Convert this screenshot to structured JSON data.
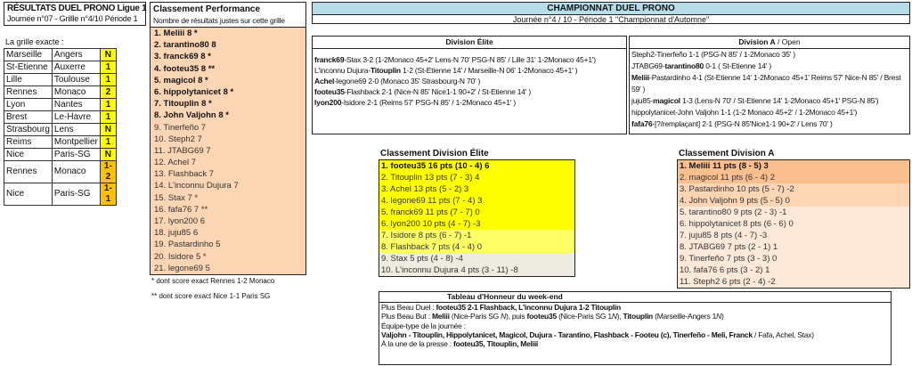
{
  "left": {
    "title": "RÉSULTATS DUEL PRONO Ligue 1",
    "subtitle": "Journée n°07 - Grillle n°4/10 Période 1",
    "grid_label": "La grille exacte :",
    "grid": [
      [
        "Marseille",
        "Angers",
        "N"
      ],
      [
        "St-Etienne",
        "Auxerre",
        "1"
      ],
      [
        "Lille",
        "Toulouse",
        "1"
      ],
      [
        "Rennes",
        "Monaco",
        "2"
      ],
      [
        "Lyon",
        "Nantes",
        "1"
      ],
      [
        "Brest",
        "Le-Havre",
        "1"
      ],
      [
        "Strasbourg",
        "Lens",
        "N"
      ],
      [
        "Reims",
        "Montpellier",
        "1"
      ],
      [
        "Nice",
        "Paris-SG",
        "N"
      ],
      [
        "Rennes",
        "Monaco",
        "1-2"
      ],
      [
        "Nice",
        "Paris-SG",
        "1-1"
      ]
    ]
  },
  "performance": {
    "title": "Classement Performance",
    "subtitle": "Nombre de résultats justes sur cette grille",
    "items": [
      "1. Meliii 8 *",
      "2. tarantino80 8",
      "3. franck69 8 *",
      "4. footeu35 8 **",
      "5. magicol 8 *",
      "6. hippolytanicet 8 *",
      "7. Titouplin 8 *",
      "8. John Valjohn 8 *",
      "9. Tinerfeño 7",
      "10. Steph2 7",
      "11. JTABG69 7",
      "12. Achel 7",
      "13. Flashback 7",
      "14. L'inconnu Dujura 7",
      "15. Stax 7 *",
      "16. fafa76 7 **",
      "17. lyon200 6",
      "18. juju85 6",
      "19. Pastardinho 5",
      "20. Isidore 5 *",
      "21. legone69 5"
    ],
    "footnote1": "* dont score exact Rennes 1-2 Monaco",
    "footnote2": "** dont score exact Nice 1-1 Paris SG"
  },
  "championship": {
    "title": "CHAMPIONNAT DUEL PRONO",
    "subtitle": "Journée n°4 / 10 - Période 1 \"Championnat d'Automne\""
  },
  "elite_duels": {
    "title": "Division Élite",
    "lines": [
      [
        {
          "t": "franck69",
          "b": 1
        },
        {
          "t": "-Stax 3-2  (1-2Monaco 45+2' Lens-N  70' PSG-N  85'  / Lille 31' 1-2Monaco 45+1')"
        }
      ],
      [
        {
          "t": "L'inconnu Dujura-"
        },
        {
          "t": "Titouplin",
          "b": 1
        },
        {
          "t": " 1-2  (St-Etienne 14'  / Marseille-N  06' 1-2Monaco  45+1' )"
        }
      ],
      [
        {
          "t": "Achel",
          "b": 1
        },
        {
          "t": "-legone69 2-0  (Monaco  35' Strasbourg-N  70' )"
        }
      ],
      [
        {
          "t": "footeu35",
          "b": 1
        },
        {
          "t": "-Flashback 2-1  (Nice-N  85' Nice1-1 90+2'  / St-Etienne 14' )"
        }
      ],
      [
        {
          "t": "lyon200",
          "b": 1
        },
        {
          "t": "-Isidore 2-1  (Reims 57' PSG-N  85'  / 1-2Monaco  45+1' )"
        }
      ]
    ]
  },
  "a_duels": {
    "title": "Division A",
    "title_suffix": " / Open",
    "lines": [
      [
        {
          "t": "Steph2-Tinerfeño 1-1  (PSG-N  85'  / 1-2Monaco  35' )"
        }
      ],
      [
        {
          "t": "JTABG69-"
        },
        {
          "t": "tarantino80",
          "b": 1
        },
        {
          "t": " 0-1 ( St-Etienne 14' )"
        }
      ],
      [
        {
          "t": "Meliii",
          "b": 1
        },
        {
          "t": "-Pastardinho 4-1  (St-Etienne 14' 1-2Monaco  45+1' Reims 57' Nice-N  85' / Brest 59' )"
        }
      ],
      [
        {
          "t": "juju85-"
        },
        {
          "t": "magicol",
          "b": 1
        },
        {
          "t": " 1-3  (Lens-N  70'  / St-Etienne 14' 1-2Monaco  45+1' PSG-N  85')"
        }
      ],
      [
        {
          "t": "hippolytanicet-John Valjohn 1-1 (1-2 Monaco 45+2' / 1-2Monaco 45+1')"
        }
      ],
      [
        {
          "t": "fafa76",
          "b": 1
        },
        {
          "t": "-[?/remplaçant] 2-1  (PSG-N  85'Nice1-1 90+2'  / Lens  70' )"
        }
      ]
    ]
  },
  "elite_ranking": {
    "title": "Classement Division Élite",
    "items": [
      "1. footeu35 16 pts (10 - 4) 6",
      "2. Titouplin 13 pts (7 - 3) 4",
      "3. Achel 13 pts (5 - 2) 3",
      "4. legone69 11 pts (7 - 4) 3",
      "5. franck69 11 pts (7 - 7) 0",
      "6. lyon200 10 pts (4 - 7) -3",
      "7. Isidore 8 pts (6 - 7) -1",
      "8. Flashback 7 pts (4 - 4) 0",
      "9. Stax 5 pts (4 - 8) -4",
      "10. L'inconnu Dujura 4 pts (3 - 11) -8"
    ],
    "colors": [
      "#ffff00",
      "#ffff00",
      "#ffff00",
      "#ffff00",
      "#ffff00",
      "#ffff00",
      "#ffff66",
      "#ffff66",
      "#eeece1",
      "#eeece1"
    ]
  },
  "a_ranking": {
    "title": "Classement Division A",
    "items": [
      "1. Meliii 11 pts (8 - 5) 3",
      "2. magicol 11 pts (6 - 4) 2",
      "3. Pastardinho 10 pts (5 - 7) -2",
      "4. John Valjohn 9 pts (5 - 5) 0",
      "5. tarantino80 9 pts (2 - 3) -1",
      "6. hippolytanicet 8 pts (6 - 6) 0",
      "7. juju85 8 pts (4 - 7) -3",
      "8. JTABG69 7 pts (2 - 1) 1",
      "9. Tinerfeño 7 pts (3 - 3) 0",
      "10. fafa76 6 pts (3 - 2) 1",
      "11. Steph2 6 pts (2 - 4) -2"
    ],
    "colors": [
      "#fabf8f",
      "#fabf8f",
      "#fcd5b4",
      "#fcd5b4",
      "#fde9d9",
      "#fde9d9",
      "#fde9d9",
      "#fde9d9",
      "#fde9d9",
      "#fde9d9",
      "#fde9d9"
    ]
  },
  "honor": {
    "title": "Tableau d'Honneur du week-end",
    "lines": [
      [
        {
          "t": "Plus Beau Duel :    "
        },
        {
          "t": "footeu35 2-1 Flashback, L'inconnu Dujura 1-2 Titouplin",
          "b": 1
        }
      ],
      [
        {
          "t": "Plus Beau But :    "
        },
        {
          "t": "Meliii",
          "b": 1
        },
        {
          "t": " (Nice-Paris SG "
        },
        {
          "t": "N",
          "i": 1
        },
        {
          "t": "), puis "
        },
        {
          "t": "footeu35",
          "b": 1
        },
        {
          "t": " (Nice-Paris SG 1"
        },
        {
          "t": "N",
          "i": 1
        },
        {
          "t": "), "
        },
        {
          "t": "Titouplin",
          "b": 1
        },
        {
          "t": " (Marseille-Angers 1"
        },
        {
          "t": "N",
          "i": 1
        },
        {
          "t": ")"
        }
      ],
      [
        {
          "t": "Équipe-type de la journée :"
        }
      ],
      [
        {
          "t": "Valjohn - Titouplin, Hippolytanicet, Magicol, Dujura - Tarantino, Flashback - Footeu (c), Tinerfeño - Meli, Franck",
          "b": 1
        },
        {
          "t": " / Fafa, Achel, Stax)"
        }
      ],
      [
        {
          "t": " "
        }
      ],
      [
        {
          "t": "À la une de la presse : "
        },
        {
          "t": "footeu35, Titouplin, Meliii",
          "b": 1
        }
      ]
    ]
  }
}
